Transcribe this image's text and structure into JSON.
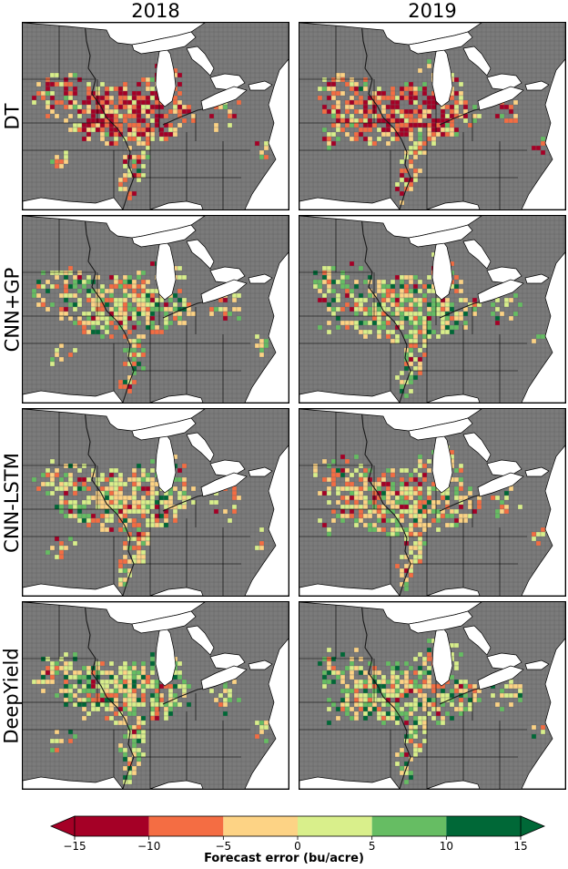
{
  "figure": {
    "columns": [
      {
        "id": "2018",
        "label": "2018"
      },
      {
        "id": "2019",
        "label": "2019"
      }
    ],
    "rows": [
      {
        "id": "dt",
        "label": "DT",
        "seed": 11
      },
      {
        "id": "cnn-gp",
        "label": "CNN+GP",
        "seed": 23
      },
      {
        "id": "cnn-lstm",
        "label": "CNN-LSTM",
        "seed": 37
      },
      {
        "id": "deepyield",
        "label": "DeepYield",
        "seed": 53
      }
    ]
  },
  "map": {
    "land_color": "#7b7b7b",
    "water_color": "#ffffff",
    "county_line_color": "#5f5f5f",
    "state_line_color": "#000000"
  },
  "colorbar": {
    "label": "Forecast error (bu/acre)",
    "ticks": [
      "−15",
      "−10",
      "−5",
      "0",
      "5",
      "10",
      "15"
    ],
    "tick_values": [
      -15,
      -10,
      -5,
      0,
      5,
      10,
      15
    ],
    "colors": [
      "#a50026",
      "#f46d43",
      "#fdd385",
      "#d9ef8b",
      "#66bd63",
      "#006837"
    ],
    "under_color": "#a50026",
    "over_color": "#006837",
    "extend": "both"
  }
}
